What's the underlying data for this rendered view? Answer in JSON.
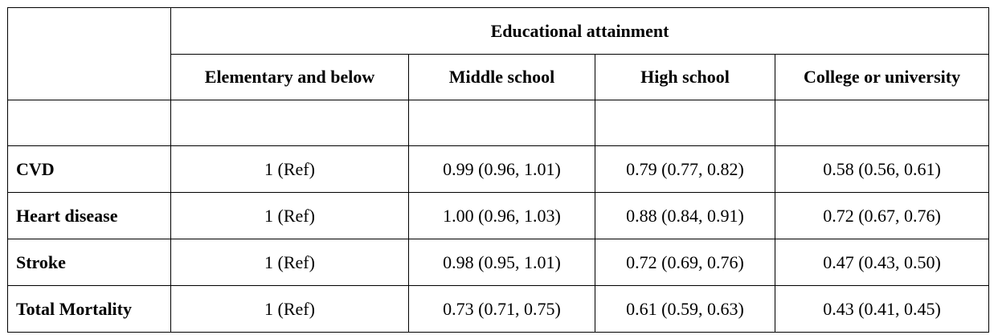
{
  "table": {
    "group_header": "Educational attainment",
    "columns": [
      "Elementary and below",
      "Middle school",
      "High school",
      "College or university"
    ],
    "rows": [
      {
        "label": "CVD",
        "values": [
          "1 (Ref)",
          "0.99 (0.96, 1.01)",
          "0.79 (0.77, 0.82)",
          "0.58 (0.56, 0.61)"
        ]
      },
      {
        "label": "Heart disease",
        "values": [
          "1 (Ref)",
          "1.00 (0.96, 1.03)",
          "0.88 (0.84, 0.91)",
          "0.72 (0.67, 0.76)"
        ]
      },
      {
        "label": "Stroke",
        "values": [
          "1 (Ref)",
          "0.98 (0.95, 1.01)",
          "0.72 (0.69, 0.76)",
          "0.47 (0.43, 0.50)"
        ]
      },
      {
        "label": "Total Mortality",
        "values": [
          "1 (Ref)",
          "0.73 (0.71, 0.75)",
          "0.61 (0.59, 0.63)",
          "0.43 (0.41, 0.45)"
        ]
      }
    ]
  }
}
